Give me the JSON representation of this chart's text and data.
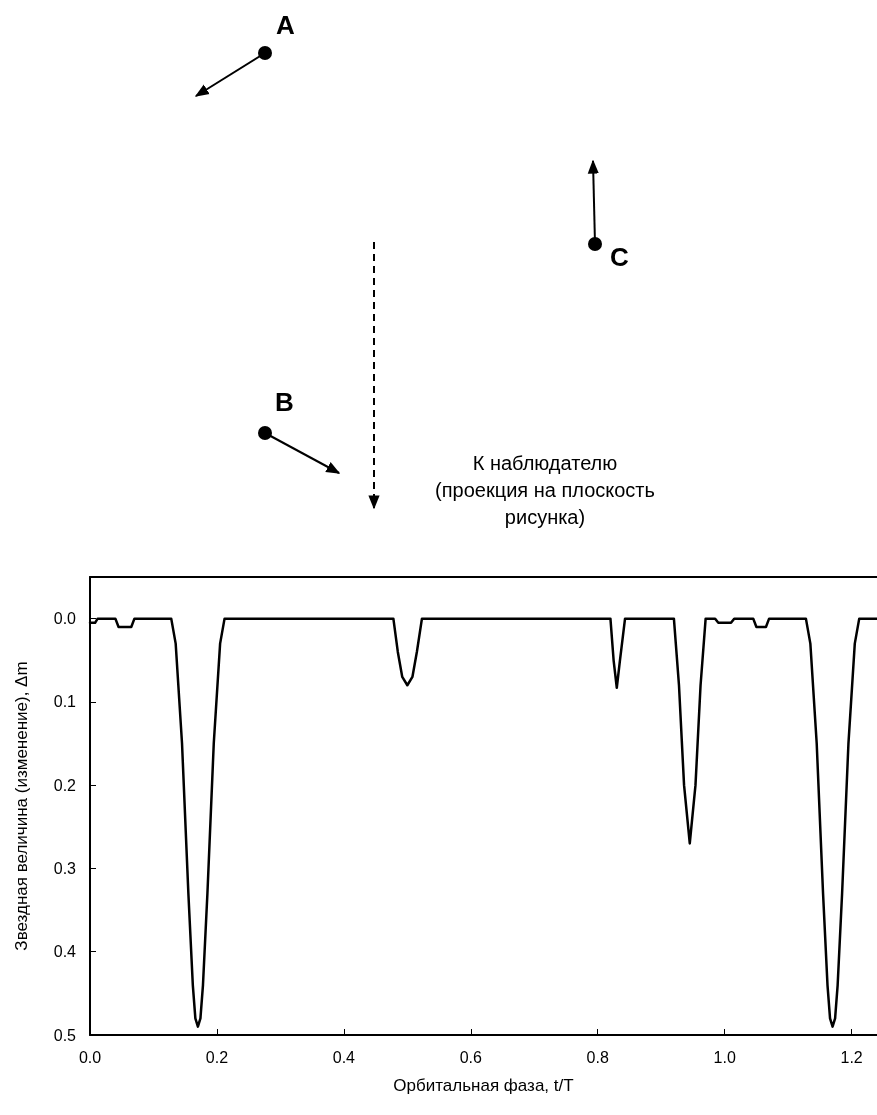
{
  "chart_data": {
    "type": "line",
    "xlabel": "Орбитальная фаза, t/T",
    "ylabel": "Звездная величина (изменение), Δm",
    "annotations": [
      "A",
      "C",
      "B",
      "К наблюдателю (проекция на плоскость рисунка)"
    ],
    "xlim": [
      0,
      1.24
    ],
    "ylim": [
      0.5,
      -0.05
    ],
    "xticks": [
      {
        "value": 0,
        "label": "0.0"
      },
      {
        "value": 0.2,
        "label": "0.2"
      },
      {
        "value": 0.4,
        "label": "0.4"
      },
      {
        "value": 0.6,
        "label": "0.6"
      },
      {
        "value": 0.8,
        "label": "0.8"
      },
      {
        "value": 1,
        "label": "1.0"
      },
      {
        "value": 1.2,
        "label": "1.2"
      }
    ],
    "yticks": [
      {
        "value": 0,
        "label": "0.0"
      },
      {
        "value": 0.1,
        "label": "0.1"
      },
      {
        "value": 0.2,
        "label": "0.2"
      },
      {
        "value": 0.3,
        "label": "0.3"
      },
      {
        "value": 0.4,
        "label": "0.4"
      },
      {
        "value": 0.5,
        "label": "0.5"
      }
    ],
    "grid": false,
    "marker": "none",
    "line_style": "solid",
    "series": [
      {
        "color": "#000000",
        "x": [
          0,
          0.008,
          0.012,
          0.04,
          0.045,
          0.065,
          0.07,
          0.128,
          0.135,
          0.145,
          0.155,
          0.162,
          0.166,
          0.17,
          0.174,
          0.178,
          0.185,
          0.195,
          0.205,
          0.212,
          0.478,
          0.485,
          0.492,
          0.5,
          0.508,
          0.515,
          0.523,
          0.82,
          0.825,
          0.83,
          0.835,
          0.843,
          0.92,
          0.928,
          0.936,
          0.945,
          0.954,
          0.962,
          0.97,
          0.985,
          0.99,
          1.01,
          1.015,
          1.045,
          1.05,
          1.065,
          1.07,
          1.128,
          1.135,
          1.145,
          1.155,
          1.162,
          1.166,
          1.17,
          1.174,
          1.178,
          1.185,
          1.195,
          1.205,
          1.212,
          1.24
        ],
        "values": [
          0.005,
          0.005,
          0,
          0,
          0.01,
          0.01,
          0,
          0,
          0.03,
          0.15,
          0.33,
          0.44,
          0.48,
          0.49,
          0.48,
          0.44,
          0.33,
          0.15,
          0.03,
          0,
          0,
          0.04,
          0.07,
          0.08,
          0.07,
          0.04,
          0,
          0,
          0.05,
          0.083,
          0.05,
          0,
          0,
          0.08,
          0.2,
          0.27,
          0.2,
          0.08,
          0,
          0,
          0.005,
          0.005,
          0,
          0,
          0.01,
          0.01,
          0,
          0,
          0.03,
          0.15,
          0.33,
          0.44,
          0.48,
          0.49,
          0.48,
          0.44,
          0.33,
          0.15,
          0.03,
          0,
          0
        ]
      }
    ]
  }
}
